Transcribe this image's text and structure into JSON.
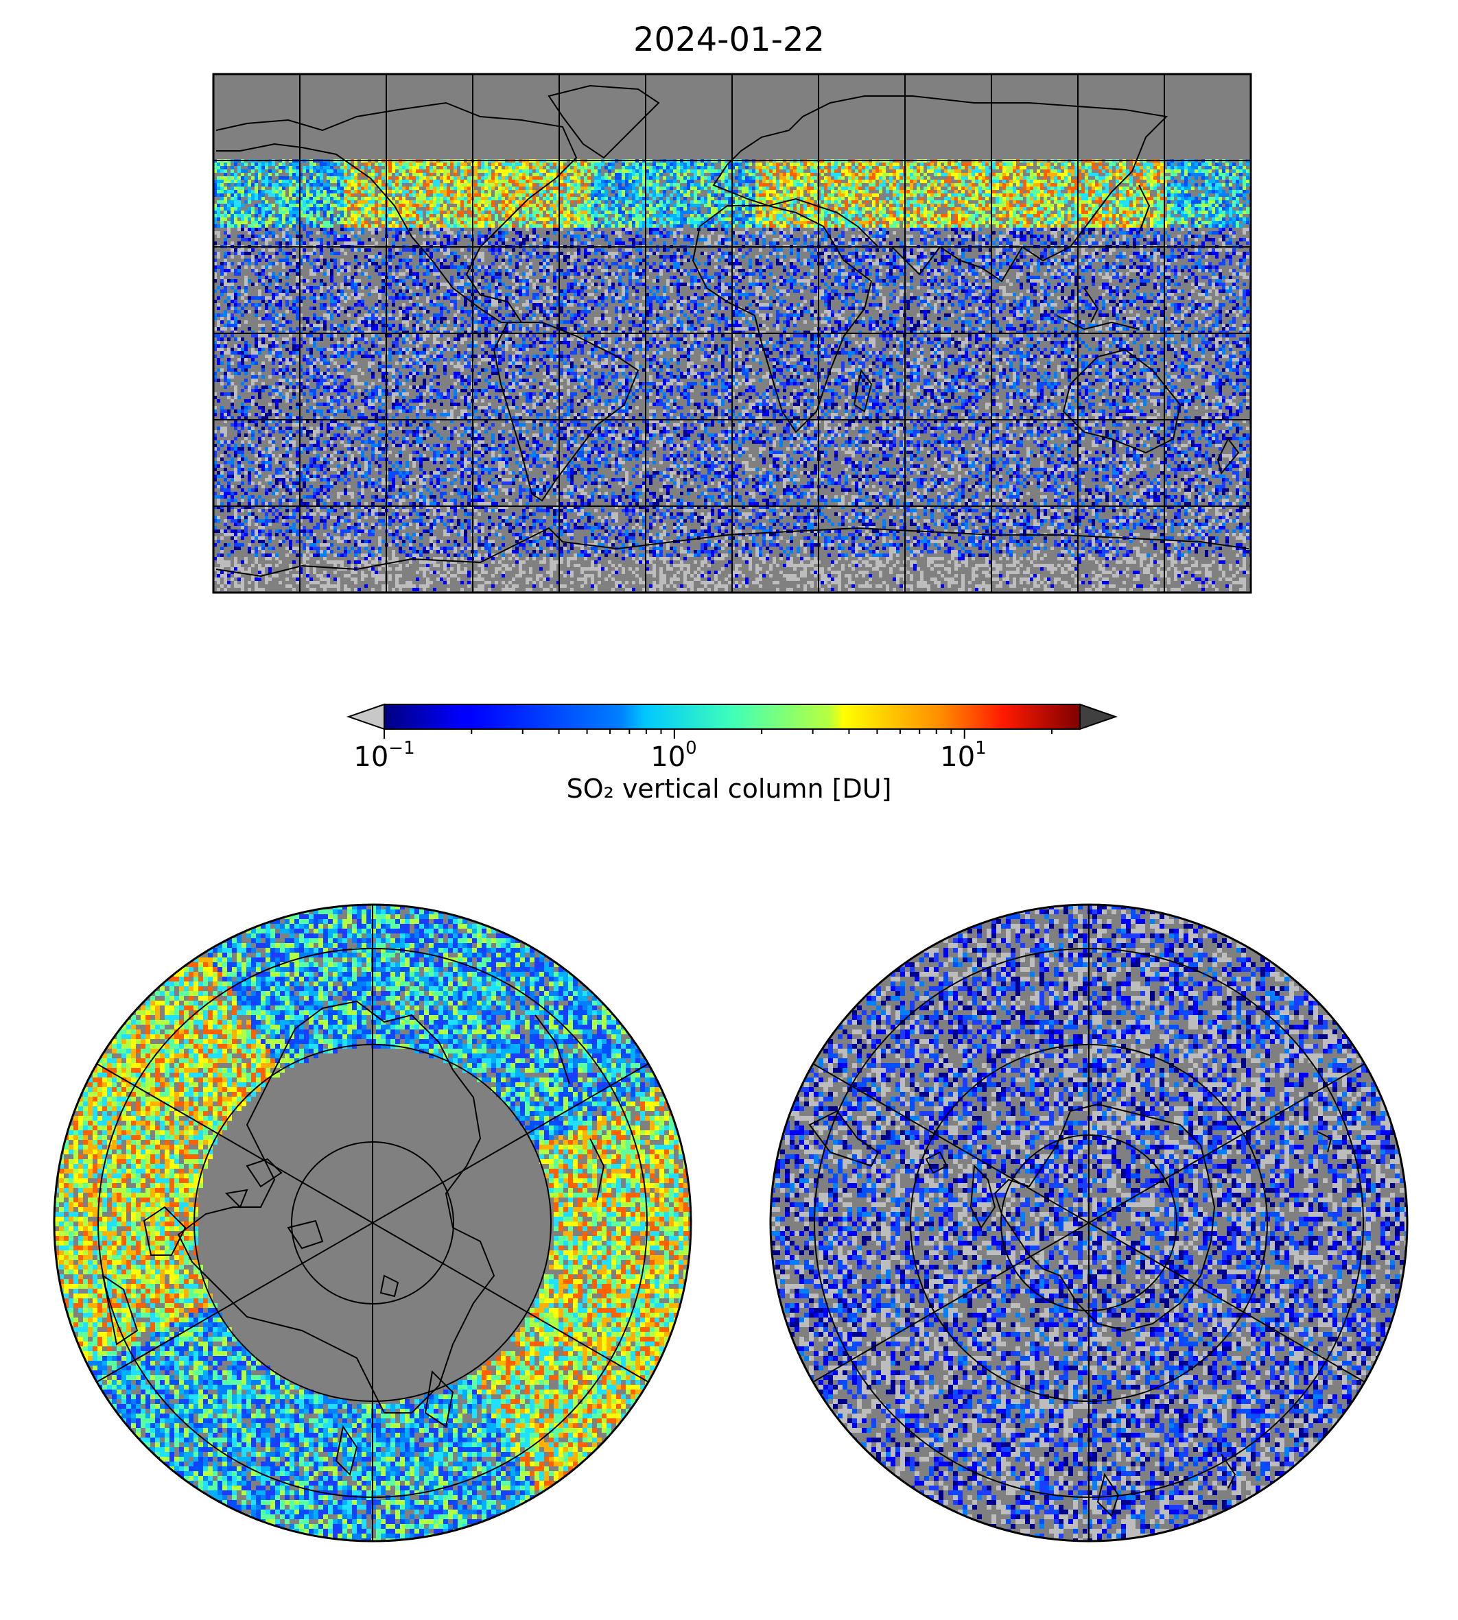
{
  "title": "2024-01-22",
  "colorbar": {
    "label": "SO₂ vertical column [DU]",
    "scale": "log",
    "range": [
      0.1,
      25
    ],
    "extend": "both",
    "under_color": "#c8c8c8",
    "over_color": "#404040",
    "colormap": "jet",
    "ticks": [
      {
        "base": "10",
        "exp": "−1",
        "value": 0.1
      },
      {
        "base": "10",
        "exp": "0",
        "value": 1
      },
      {
        "base": "10",
        "exp": "1",
        "value": 10
      }
    ]
  },
  "colors": {
    "ocean_background": "#808080",
    "no_data_light": "#bdbdbd",
    "coastline": "#000000",
    "graticule": "#000000"
  },
  "maps": [
    {
      "name": "global",
      "projection": "equirectangular",
      "grid_lon_step_deg": 30,
      "grid_lat_step_deg": 30
    },
    {
      "name": "north-polar",
      "projection": "polar stereographic",
      "hemisphere": "north"
    },
    {
      "name": "south-polar",
      "projection": "polar stereographic",
      "hemisphere": "south"
    }
  ]
}
